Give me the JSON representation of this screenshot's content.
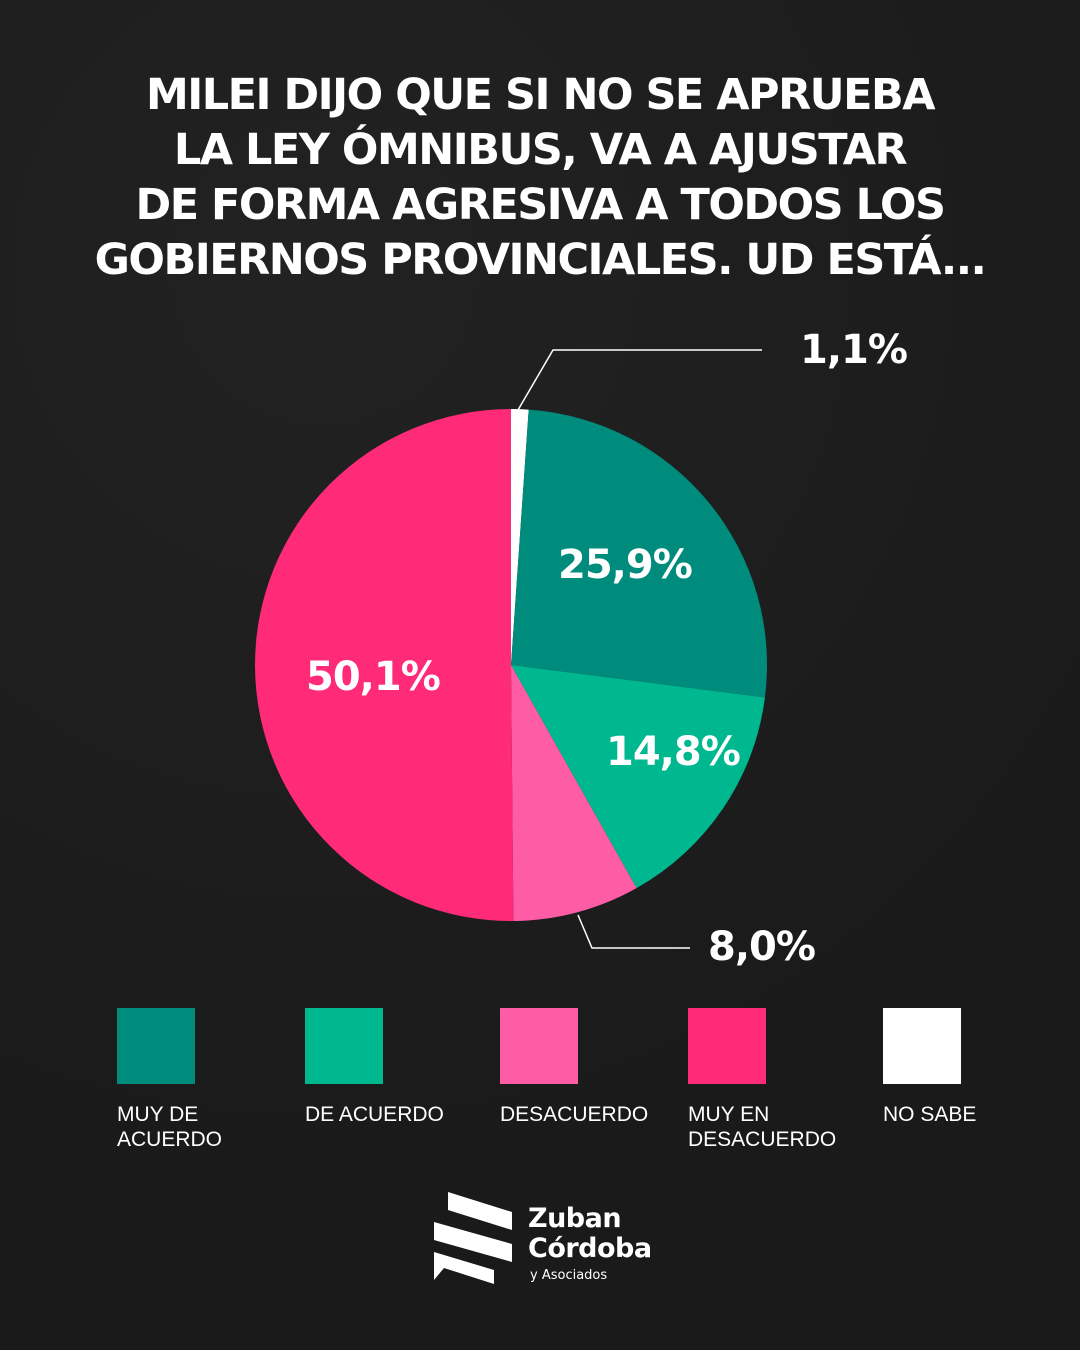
{
  "title_lines": [
    "MILEI DIJO QUE SI NO SE APRUEBA",
    "LA LEY ÓMNIBUS, VA A AJUSTAR",
    "DE FORMA AGRESIVA A TODOS LOS",
    "GOBIERNOS PROVINCIALES. UD ESTÁ..."
  ],
  "chart_data": {
    "type": "pie",
    "title": "MILEI DIJO QUE SI NO SE APRUEBA LA LEY ÓMNIBUS, VA A AJUSTAR DE FORMA AGRESIVA A TODOS LOS GOBIERNOS PROVINCIALES. UD ESTÁ...",
    "slices": [
      {
        "name": "NO SABE",
        "legend": "NO SABE",
        "value": 1.1,
        "label": "1,1%",
        "color": "#ffffff"
      },
      {
        "name": "MUY DE ACUERDO",
        "legend": "MUY DE ACUERDO",
        "value": 25.9,
        "label": "25,9%",
        "color": "#008c7c"
      },
      {
        "name": "DE ACUERDO",
        "legend": "DE ACUERDO",
        "value": 14.8,
        "label": "14,8%",
        "color": "#00b88f"
      },
      {
        "name": "DESACUERDO",
        "legend": "DESACUERDO",
        "value": 8.0,
        "label": "8,0%",
        "color": "#ff5ca6"
      },
      {
        "name": "MUY EN DESACUERDO",
        "legend": "MUY EN DESACUERDO",
        "value": 50.1,
        "label": "50,1%",
        "color": "#ff2a78"
      }
    ],
    "legend_order": [
      "MUY DE ACUERDO",
      "DE ACUERDO",
      "DESACUERDO",
      "MUY EN DESACUERDO",
      "NO SABE"
    ],
    "legend_position": "bottom"
  },
  "logo": {
    "name_line1": "Zuban",
    "name_line2": "Córdoba",
    "sub": "y Asociados"
  }
}
